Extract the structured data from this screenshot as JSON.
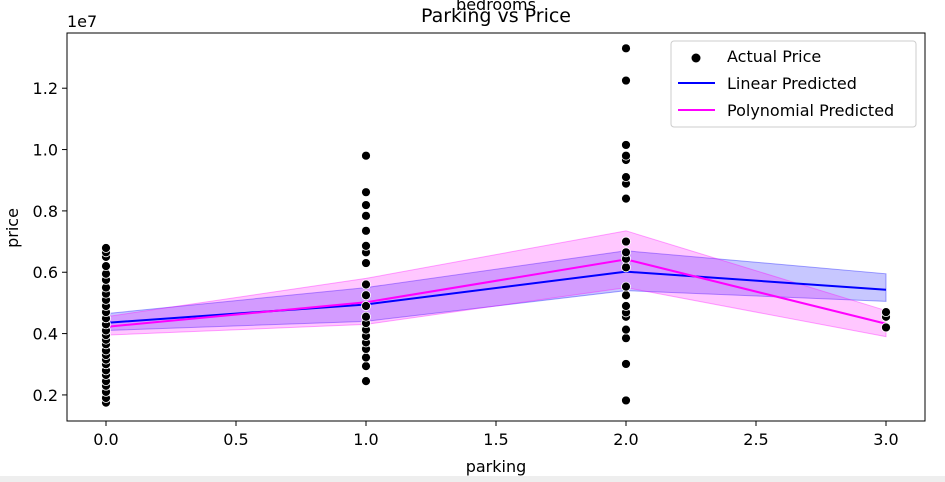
{
  "chart_data": {
    "type": "line",
    "title": "Parking vs Price",
    "clipped_text": "bedrooms",
    "offset_text": "1e7",
    "xlabel": "parking",
    "ylabel": "price",
    "xlim": [
      -0.15,
      3.15
    ],
    "ylim": [
      1150000,
      13800000
    ],
    "x_ticks": [
      {
        "v": 0.0,
        "label": "0.0"
      },
      {
        "v": 0.5,
        "label": "0.5"
      },
      {
        "v": 1.0,
        "label": "1.0"
      },
      {
        "v": 1.5,
        "label": "1.5"
      },
      {
        "v": 2.0,
        "label": "2.0"
      },
      {
        "v": 2.5,
        "label": "2.5"
      },
      {
        "v": 3.0,
        "label": "3.0"
      }
    ],
    "y_ticks": [
      {
        "v": 2000000,
        "label": "0.2"
      },
      {
        "v": 4000000,
        "label": "0.4"
      },
      {
        "v": 6000000,
        "label": "0.6"
      },
      {
        "v": 8000000,
        "label": "0.8"
      },
      {
        "v": 10000000,
        "label": "1.0"
      },
      {
        "v": 12000000,
        "label": "1.2"
      }
    ],
    "grid": false,
    "legend_position": "top-right",
    "legend": [
      {
        "label": "Actual Price",
        "kind": "marker",
        "color": "#000000"
      },
      {
        "label": "Linear Predicted",
        "kind": "line",
        "color": "#0000ff"
      },
      {
        "label": "Polynomial Predicted",
        "kind": "line",
        "color": "#ff00ff"
      }
    ],
    "scatter": {
      "name": "Actual Price",
      "color": "#000000",
      "points": [
        {
          "x": 0,
          "y": 1750000
        },
        {
          "x": 0,
          "y": 1900000
        },
        {
          "x": 0,
          "y": 2100000
        },
        {
          "x": 0,
          "y": 2300000
        },
        {
          "x": 0,
          "y": 2450000
        },
        {
          "x": 0,
          "y": 2650000
        },
        {
          "x": 0,
          "y": 2800000
        },
        {
          "x": 0,
          "y": 3000000
        },
        {
          "x": 0,
          "y": 3150000
        },
        {
          "x": 0,
          "y": 3300000
        },
        {
          "x": 0,
          "y": 3450000
        },
        {
          "x": 0,
          "y": 3650000
        },
        {
          "x": 0,
          "y": 3800000
        },
        {
          "x": 0,
          "y": 3950000
        },
        {
          "x": 0,
          "y": 4100000
        },
        {
          "x": 0,
          "y": 4300000
        },
        {
          "x": 0,
          "y": 4500000
        },
        {
          "x": 0,
          "y": 4700000
        },
        {
          "x": 0,
          "y": 4900000
        },
        {
          "x": 0,
          "y": 5100000
        },
        {
          "x": 0,
          "y": 5300000
        },
        {
          "x": 0,
          "y": 5500000
        },
        {
          "x": 0,
          "y": 5750000
        },
        {
          "x": 0,
          "y": 5950000
        },
        {
          "x": 0,
          "y": 6200000
        },
        {
          "x": 0,
          "y": 6500000
        },
        {
          "x": 0,
          "y": 6650000
        },
        {
          "x": 0,
          "y": 6790000
        },
        {
          "x": 1,
          "y": 2450000
        },
        {
          "x": 1,
          "y": 2940000
        },
        {
          "x": 1,
          "y": 3220000
        },
        {
          "x": 1,
          "y": 3500000
        },
        {
          "x": 1,
          "y": 3710000
        },
        {
          "x": 1,
          "y": 3920000
        },
        {
          "x": 1,
          "y": 4130000
        },
        {
          "x": 1,
          "y": 4340000
        },
        {
          "x": 1,
          "y": 4550000
        },
        {
          "x": 1,
          "y": 4900000
        },
        {
          "x": 1,
          "y": 5250000
        },
        {
          "x": 1,
          "y": 5600000
        },
        {
          "x": 1,
          "y": 6300000
        },
        {
          "x": 1,
          "y": 6650000
        },
        {
          "x": 1,
          "y": 6860000
        },
        {
          "x": 1,
          "y": 7350000
        },
        {
          "x": 1,
          "y": 7840000
        },
        {
          "x": 1,
          "y": 8190000
        },
        {
          "x": 1,
          "y": 8610000
        },
        {
          "x": 1,
          "y": 9800000
        },
        {
          "x": 2,
          "y": 1820000
        },
        {
          "x": 2,
          "y": 3010000
        },
        {
          "x": 2,
          "y": 3850000
        },
        {
          "x": 2,
          "y": 4130000
        },
        {
          "x": 2,
          "y": 4550000
        },
        {
          "x": 2,
          "y": 4690000
        },
        {
          "x": 2,
          "y": 4900000
        },
        {
          "x": 2,
          "y": 5250000
        },
        {
          "x": 2,
          "y": 5530000
        },
        {
          "x": 2,
          "y": 6160000
        },
        {
          "x": 2,
          "y": 6440000
        },
        {
          "x": 2,
          "y": 6650000
        },
        {
          "x": 2,
          "y": 7000000
        },
        {
          "x": 2,
          "y": 8400000
        },
        {
          "x": 2,
          "y": 8890000
        },
        {
          "x": 2,
          "y": 9100000
        },
        {
          "x": 2,
          "y": 9660000
        },
        {
          "x": 2,
          "y": 9800000
        },
        {
          "x": 2,
          "y": 10150000
        },
        {
          "x": 2,
          "y": 12250000
        },
        {
          "x": 2,
          "y": 13300000
        },
        {
          "x": 3,
          "y": 4200000
        },
        {
          "x": 3,
          "y": 4550000
        },
        {
          "x": 3,
          "y": 4700000
        }
      ]
    },
    "series": [
      {
        "name": "Linear Predicted",
        "color": "#0000ff",
        "x": [
          0,
          1,
          2,
          3
        ],
        "y": [
          4350000,
          4950000,
          6020000,
          5430000
        ],
        "ci_lower": [
          4100000,
          4400000,
          5400000,
          5050000
        ],
        "ci_upper": [
          4650000,
          5500000,
          6700000,
          5950000
        ]
      },
      {
        "name": "Polynomial Predicted",
        "color": "#ff00ff",
        "x": [
          0,
          1,
          2,
          3
        ],
        "y": [
          4220000,
          5020000,
          6420000,
          4320000
        ],
        "ci_lower": [
          3950000,
          4300000,
          5500000,
          3900000
        ],
        "ci_upper": [
          4550000,
          5800000,
          7350000,
          4750000
        ]
      }
    ]
  }
}
